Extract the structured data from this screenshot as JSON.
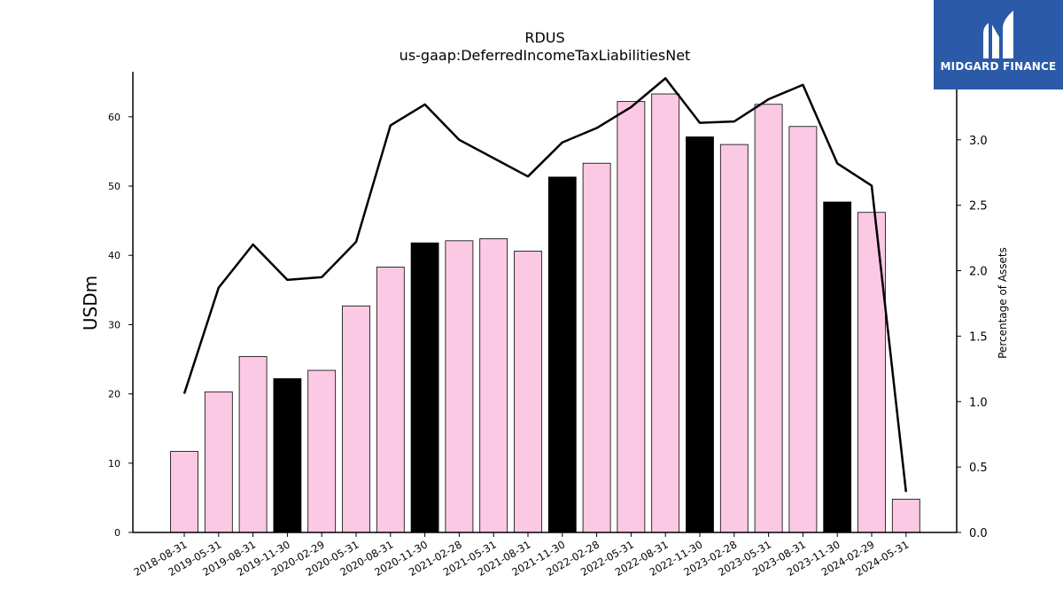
{
  "chart_data": {
    "type": "bar",
    "title": "RDUS",
    "subtitle": "us-gaap:DeferredIncomeTaxLiabilitiesNet",
    "ylabel": "USDm",
    "y2label": "Percentage of Assets",
    "ylim": [
      0,
      66.5
    ],
    "y2lim": [
      0,
      3.52
    ],
    "yticks": [
      0,
      10,
      20,
      30,
      40,
      50,
      60
    ],
    "y2ticks": [
      "0.0",
      "0.5",
      "1.0",
      "1.5",
      "2.0",
      "2.5",
      "3.0",
      "3.5"
    ],
    "categories": [
      "2018-08-31",
      "2019-05-31",
      "2019-08-31",
      "2019-11-30",
      "2020-02-29",
      "2020-05-31",
      "2020-08-31",
      "2020-11-30",
      "2021-02-28",
      "2021-05-31",
      "2021-08-31",
      "2021-11-30",
      "2022-02-28",
      "2022-05-31",
      "2022-08-31",
      "2022-11-30",
      "2023-02-28",
      "2023-05-31",
      "2023-08-31",
      "2023-11-30",
      "2024-02-29",
      "2024-05-31"
    ],
    "values": [
      11.7,
      20.3,
      25.4,
      22.2,
      23.4,
      32.7,
      38.3,
      41.8,
      42.1,
      42.4,
      40.6,
      51.3,
      53.3,
      62.2,
      63.3,
      57.1,
      56.0,
      61.8,
      58.6,
      47.7,
      46.2,
      4.8
    ],
    "bar_colors": [
      "pink",
      "pink",
      "pink",
      "black",
      "pink",
      "pink",
      "pink",
      "black",
      "pink",
      "pink",
      "pink",
      "black",
      "pink",
      "pink",
      "pink",
      "black",
      "pink",
      "pink",
      "pink",
      "black",
      "pink",
      "pink"
    ],
    "line_series": {
      "axis": "right",
      "values": [
        1.06,
        1.87,
        2.2,
        1.93,
        1.95,
        2.22,
        3.11,
        3.27,
        3.0,
        2.86,
        2.72,
        2.98,
        3.09,
        3.25,
        3.47,
        3.13,
        3.14,
        3.31,
        3.42,
        2.82,
        2.65,
        0.31
      ]
    },
    "grid": false,
    "colors": {
      "pink": "#fcc9e4",
      "black": "#000000",
      "line": "#000000"
    }
  },
  "logo": {
    "text": "MIDGARD FINANCE"
  }
}
